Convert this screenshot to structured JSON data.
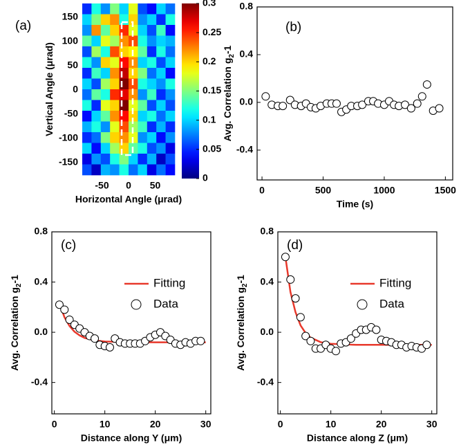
{
  "chart_data": [
    {
      "type": "heatmap",
      "panel_label": "(a)",
      "x_label": "Horizontal Angle (μrad)",
      "y_label": [
        "Vertical Angle (μrad)"
      ],
      "xlim": [
        -87,
        87
      ],
      "ylim": [
        -176,
        178
      ],
      "xticks": [
        -50,
        0,
        50
      ],
      "yticks": [
        -150,
        -100,
        -50,
        0,
        50,
        100,
        150
      ],
      "colormap": "jet",
      "clim": [
        0,
        0.3
      ],
      "cticks": [
        0,
        0.05,
        0.1,
        0.15,
        0.2,
        0.25,
        0.3
      ],
      "z": [
        [
          0.05,
          0.12,
          0.08,
          0.15,
          0.1,
          0.18,
          0.06,
          0.04,
          0.1,
          0.07
        ],
        [
          0.1,
          0.15,
          0.2,
          0.22,
          0.12,
          0.2,
          0.08,
          0.1,
          0.05,
          0.12
        ],
        [
          0.08,
          0.22,
          0.14,
          0.2,
          0.25,
          0.18,
          0.1,
          0.06,
          0.13,
          0.04
        ],
        [
          0.14,
          0.1,
          0.18,
          0.16,
          0.22,
          0.24,
          0.12,
          0.08,
          0.1,
          0.09
        ],
        [
          0.06,
          0.16,
          0.12,
          0.24,
          0.2,
          0.19,
          0.14,
          0.05,
          0.12,
          0.07
        ],
        [
          0.12,
          0.08,
          0.2,
          0.18,
          0.26,
          0.22,
          0.1,
          0.12,
          0.06,
          0.1
        ],
        [
          0.05,
          0.13,
          0.1,
          0.22,
          0.28,
          0.2,
          0.15,
          0.07,
          0.1,
          0.04
        ],
        [
          0.1,
          0.06,
          0.16,
          0.2,
          0.3,
          0.24,
          0.12,
          0.1,
          0.08,
          0.12
        ],
        [
          0.07,
          0.14,
          0.12,
          0.25,
          0.27,
          0.22,
          0.08,
          0.13,
          0.05,
          0.08
        ],
        [
          0.12,
          0.05,
          0.18,
          0.2,
          0.3,
          0.18,
          0.14,
          0.06,
          0.1,
          0.06
        ],
        [
          0.04,
          0.1,
          0.14,
          0.22,
          0.26,
          0.2,
          0.1,
          0.12,
          0.07,
          0.1
        ],
        [
          0.09,
          0.12,
          0.08,
          0.18,
          0.24,
          0.16,
          0.13,
          0.05,
          0.09,
          0.05
        ],
        [
          0.05,
          0.07,
          0.15,
          0.2,
          0.22,
          0.18,
          0.08,
          0.1,
          0.04,
          0.08
        ],
        [
          0.1,
          0.04,
          0.1,
          0.16,
          0.2,
          0.14,
          0.12,
          0.06,
          0.08,
          0.03
        ],
        [
          0.03,
          0.08,
          0.06,
          0.12,
          0.15,
          0.1,
          0.05,
          0.09,
          0.02,
          0.06
        ],
        [
          0.06,
          0.02,
          0.09,
          0.08,
          0.12,
          0.07,
          0.1,
          0.03,
          0.07,
          0.04
        ]
      ]
    },
    {
      "type": "scatter",
      "panel_label": "(b)",
      "x_label": "Time (s)",
      "y_label": [
        "Avg. Correlation g",
        "2",
        "-1"
      ],
      "xlim": [
        -40,
        1560
      ],
      "ylim": [
        -0.65,
        0.8
      ],
      "xticks": [
        0,
        500,
        1000,
        1500
      ],
      "yticks": [
        {
          "value": -0.4,
          "label": "-0.4"
        },
        {
          "value": 0,
          "label": "0.0"
        },
        {
          "value": 0.4,
          "label": "0.4"
        },
        {
          "value": 0.8,
          "label": "0.8"
        }
      ],
      "series": [
        {
          "style": "open-circle",
          "color": "#000000",
          "x": [
            30,
            80,
            130,
            170,
            230,
            270,
            320,
            360,
            400,
            440,
            480,
            530,
            570,
            610,
            650,
            690,
            730,
            780,
            820,
            870,
            910,
            950,
            1000,
            1040,
            1080,
            1120,
            1170,
            1220,
            1270,
            1310,
            1350,
            1400,
            1450
          ],
          "values": [
            0.05,
            -0.02,
            -0.03,
            -0.03,
            0.02,
            -0.02,
            -0.03,
            -0.01,
            -0.04,
            -0.05,
            -0.03,
            -0.01,
            -0.01,
            -0.01,
            -0.08,
            -0.06,
            -0.03,
            -0.03,
            -0.02,
            0.01,
            0.01,
            -0.01,
            -0.02,
            0.01,
            -0.02,
            -0.03,
            -0.02,
            -0.05,
            -0.01,
            0.05,
            0.15,
            -0.07,
            -0.05
          ]
        }
      ]
    },
    {
      "type": "line",
      "panel_label": "(c)",
      "x_label": "Distance along Y (μm)",
      "y_label": [
        "Avg. Correlation g",
        "2",
        "-1"
      ],
      "xlim": [
        -0.5,
        31
      ],
      "ylim": [
        -0.65,
        0.8
      ],
      "xticks": [
        0,
        10,
        20,
        30
      ],
      "yticks": [
        {
          "value": -0.4,
          "label": "-0.4"
        },
        {
          "value": 0,
          "label": "0.0"
        },
        {
          "value": 0.4,
          "label": "0.4"
        },
        {
          "value": 0.8,
          "label": "0.8"
        }
      ],
      "legend": "upper right",
      "series": [
        {
          "name": "Fitting",
          "style": "line",
          "color": "#e8382b",
          "x": [
            1,
            2,
            3,
            4,
            5,
            6,
            8,
            10,
            15,
            20,
            30
          ],
          "values": [
            0.23,
            0.12,
            0.05,
            0.004,
            -0.025,
            -0.045,
            -0.065,
            -0.074,
            -0.079,
            -0.08,
            -0.08
          ]
        },
        {
          "name": "Data",
          "style": "open-circle",
          "color": "#000000",
          "x": [
            1,
            2,
            3,
            4,
            5,
            6,
            7,
            8,
            9,
            10,
            11,
            12,
            13,
            14,
            15,
            16,
            17,
            18,
            19,
            20,
            21,
            22,
            23,
            24,
            25,
            26,
            27,
            28,
            29
          ],
          "values": [
            0.22,
            0.18,
            0.1,
            0.06,
            0.03,
            0.0,
            -0.03,
            -0.05,
            -0.1,
            -0.11,
            -0.12,
            -0.05,
            -0.08,
            -0.09,
            -0.09,
            -0.09,
            -0.09,
            -0.07,
            -0.04,
            -0.02,
            0.0,
            -0.03,
            -0.06,
            -0.09,
            -0.1,
            -0.08,
            -0.09,
            -0.07,
            -0.07
          ]
        }
      ]
    },
    {
      "type": "line",
      "panel_label": "(d)",
      "x_label": "Distance along Z (μm)",
      "y_label": [
        "Avg. Correlation g",
        "2",
        "-1"
      ],
      "xlim": [
        -0.5,
        31
      ],
      "ylim": [
        -0.65,
        0.8
      ],
      "xticks": [
        0,
        10,
        20,
        30
      ],
      "yticks": [
        {
          "value": -0.4,
          "label": "-0.4"
        },
        {
          "value": 0,
          "label": "0.0"
        },
        {
          "value": 0.4,
          "label": "0.4"
        },
        {
          "value": 0.8,
          "label": "0.8"
        }
      ],
      "legend": "upper right",
      "series": [
        {
          "name": "Fitting",
          "style": "line",
          "color": "#e8382b",
          "x": [
            1,
            2,
            3,
            4,
            5,
            6,
            8,
            10,
            15,
            20,
            30
          ],
          "values": [
            0.6,
            0.32,
            0.16,
            0.055,
            -0.006,
            -0.043,
            -0.079,
            -0.092,
            -0.1,
            -0.1,
            -0.1
          ]
        },
        {
          "name": "Data",
          "style": "open-circle",
          "color": "#000000",
          "x": [
            1,
            2,
            3,
            4,
            5,
            6,
            7,
            8,
            9,
            10,
            11,
            12,
            13,
            14,
            15,
            16,
            17,
            18,
            19,
            20,
            21,
            22,
            23,
            24,
            25,
            26,
            27,
            28,
            29
          ],
          "values": [
            0.6,
            0.42,
            0.27,
            0.12,
            -0.03,
            -0.07,
            -0.13,
            -0.13,
            -0.1,
            -0.13,
            -0.15,
            -0.09,
            -0.08,
            -0.05,
            -0.01,
            0.02,
            0.02,
            0.04,
            0.02,
            -0.06,
            -0.07,
            -0.08,
            -0.1,
            -0.1,
            -0.12,
            -0.11,
            -0.12,
            -0.13,
            -0.1
          ]
        }
      ]
    }
  ]
}
